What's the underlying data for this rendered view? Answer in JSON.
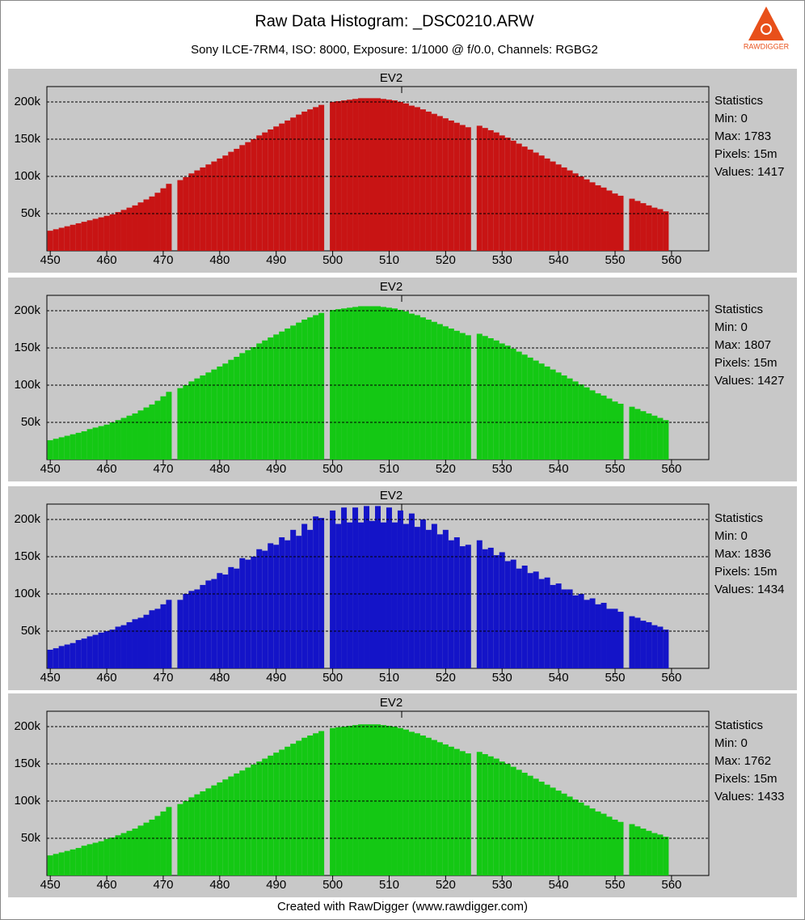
{
  "header": {
    "title": "Raw Data Histogram: _DSC0210.ARW",
    "subtitle": "Sony ILCE-7RM4, ISO: 8000, Exposure: 1/1000 @ f/0.0, Channels: RGBG2"
  },
  "footer": "Created with RawDigger (www.rawdigger.com)",
  "logo": "RAWDIGGER",
  "chart_data": [
    {
      "type": "histogram",
      "title": "EV2",
      "color": "#c81414",
      "stats": [
        "Statistics",
        "Min: 0",
        "Max: 1783",
        "Pixels: 15m",
        "Values: 1417"
      ],
      "bins": [
        449.5,
        450.5,
        451.5,
        452.5,
        453.5,
        454.5,
        455.5,
        456.5,
        457.5,
        458.5,
        459.5,
        460.5,
        461.5,
        462.5,
        463.5,
        464.5,
        465.5,
        466.5,
        467.5,
        468.5,
        469.5,
        470.5,
        471.5,
        472.5,
        473.5,
        474.5,
        475.5,
        476.5,
        477.5,
        478.5,
        479.5,
        480.5,
        481.5,
        482.5,
        483.5,
        484.5,
        485.5,
        486.5,
        487.5,
        488.5,
        489.5,
        490.5,
        491.5,
        492.5,
        493.5,
        494.5,
        495.5,
        496.5,
        497.5,
        498.5,
        499.5,
        500.5,
        501.5,
        502.5,
        503.5,
        504.5,
        505.5,
        506.5,
        507.5,
        508.5,
        509.5,
        510.5,
        511.5,
        512.5,
        513.5,
        514.5,
        515.5,
        516.5,
        517.5,
        518.5,
        519.5,
        520.5,
        521.5,
        522.5,
        523.5,
        524.5,
        525.5,
        526.5,
        527.5,
        528.5,
        529.5,
        530.5,
        531.5,
        532.5,
        533.5,
        534.5,
        535.5,
        536.5,
        537.5,
        538.5,
        539.5,
        540.5,
        541.5,
        542.5,
        543.5,
        544.5,
        545.5,
        546.5,
        547.5,
        548.5,
        549.5,
        550.5,
        551.5,
        552.5,
        553.5,
        554.5,
        555.5,
        556.5,
        557.5,
        558.5,
        559.5
      ],
      "values": [
        27,
        29,
        31,
        33,
        35,
        37,
        39,
        41,
        43,
        45,
        47,
        49,
        52,
        55,
        58,
        61,
        65,
        69,
        73,
        78,
        84,
        90,
        0,
        95,
        99,
        104,
        108,
        112,
        116,
        120,
        124,
        128,
        133,
        137,
        142,
        146,
        150,
        155,
        159,
        163,
        167,
        171,
        175,
        179,
        183,
        187,
        190,
        193,
        196,
        0,
        200,
        201,
        202,
        203,
        204,
        205,
        205,
        205,
        205,
        204,
        203,
        202,
        200,
        198,
        195,
        193,
        190,
        187,
        184,
        181,
        178,
        175,
        172,
        169,
        166,
        0,
        168,
        165,
        162,
        159,
        155,
        152,
        148,
        144,
        140,
        136,
        132,
        128,
        124,
        120,
        116,
        112,
        108,
        104,
        100,
        96,
        92,
        88,
        85,
        81,
        77,
        74,
        0,
        70,
        67,
        64,
        61,
        58,
        56,
        53
      ],
      "xlim": [
        449.4,
        566.6
      ],
      "ylim": [
        0,
        220.6
      ],
      "xticks": [
        450,
        460,
        470,
        480,
        490,
        500,
        510,
        520,
        530,
        540,
        550,
        560
      ],
      "yticks": [
        {
          "value": 50,
          "label": "50k"
        },
        {
          "value": 100,
          "label": "100k"
        },
        {
          "value": 150,
          "label": "150k"
        },
        {
          "value": 200,
          "label": "200k"
        }
      ],
      "grid": true
    },
    {
      "type": "histogram",
      "title": "EV2",
      "color": "#14c814",
      "stats": [
        "Statistics",
        "Min: 0",
        "Max: 1807",
        "Pixels: 15m",
        "Values: 1427"
      ],
      "bins": [
        449.5,
        450.5,
        451.5,
        452.5,
        453.5,
        454.5,
        455.5,
        456.5,
        457.5,
        458.5,
        459.5,
        460.5,
        461.5,
        462.5,
        463.5,
        464.5,
        465.5,
        466.5,
        467.5,
        468.5,
        469.5,
        470.5,
        471.5,
        472.5,
        473.5,
        474.5,
        475.5,
        476.5,
        477.5,
        478.5,
        479.5,
        480.5,
        481.5,
        482.5,
        483.5,
        484.5,
        485.5,
        486.5,
        487.5,
        488.5,
        489.5,
        490.5,
        491.5,
        492.5,
        493.5,
        494.5,
        495.5,
        496.5,
        497.5,
        498.5,
        499.5,
        500.5,
        501.5,
        502.5,
        503.5,
        504.5,
        505.5,
        506.5,
        507.5,
        508.5,
        509.5,
        510.5,
        511.5,
        512.5,
        513.5,
        514.5,
        515.5,
        516.5,
        517.5,
        518.5,
        519.5,
        520.5,
        521.5,
        522.5,
        523.5,
        524.5,
        525.5,
        526.5,
        527.5,
        528.5,
        529.5,
        530.5,
        531.5,
        532.5,
        533.5,
        534.5,
        535.5,
        536.5,
        537.5,
        538.5,
        539.5,
        540.5,
        541.5,
        542.5,
        543.5,
        544.5,
        545.5,
        546.5,
        547.5,
        548.5,
        549.5,
        550.5,
        551.5,
        552.5,
        553.5,
        554.5,
        555.5,
        556.5,
        557.5,
        558.5,
        559.5
      ],
      "values": [
        26,
        28,
        30,
        32,
        34,
        36,
        38,
        41,
        43,
        45,
        47,
        50,
        53,
        56,
        59,
        62,
        66,
        70,
        74,
        79,
        85,
        91,
        0,
        96,
        100,
        105,
        109,
        113,
        117,
        121,
        125,
        129,
        134,
        138,
        143,
        147,
        151,
        156,
        160,
        164,
        168,
        172,
        176,
        180,
        184,
        188,
        191,
        194,
        197,
        0,
        201,
        202,
        203,
        204,
        205,
        206,
        206,
        206,
        206,
        205,
        204,
        203,
        201,
        199,
        196,
        194,
        191,
        188,
        185,
        182,
        179,
        176,
        173,
        170,
        167,
        0,
        169,
        166,
        163,
        160,
        156,
        153,
        149,
        145,
        141,
        137,
        133,
        129,
        125,
        121,
        117,
        113,
        109,
        105,
        101,
        97,
        93,
        89,
        86,
        82,
        78,
        75,
        0,
        71,
        68,
        65,
        62,
        59,
        56,
        53
      ],
      "xlim": [
        449.4,
        566.6
      ],
      "ylim": [
        0,
        220.6
      ],
      "xticks": [
        450,
        460,
        470,
        480,
        490,
        500,
        510,
        520,
        530,
        540,
        550,
        560
      ],
      "yticks": [
        {
          "value": 50,
          "label": "50k"
        },
        {
          "value": 100,
          "label": "100k"
        },
        {
          "value": 150,
          "label": "150k"
        },
        {
          "value": 200,
          "label": "200k"
        }
      ],
      "grid": true
    },
    {
      "type": "histogram",
      "title": "EV2",
      "color": "#1414c8",
      "stats": [
        "Statistics",
        "Min: 0",
        "Max: 1836",
        "Pixels: 15m",
        "Values: 1434"
      ],
      "bins": [
        449.5,
        450.5,
        451.5,
        452.5,
        453.5,
        454.5,
        455.5,
        456.5,
        457.5,
        458.5,
        459.5,
        460.5,
        461.5,
        462.5,
        463.5,
        464.5,
        465.5,
        466.5,
        467.5,
        468.5,
        469.5,
        470.5,
        471.5,
        472.5,
        473.5,
        474.5,
        475.5,
        476.5,
        477.5,
        478.5,
        479.5,
        480.5,
        481.5,
        482.5,
        483.5,
        484.5,
        485.5,
        486.5,
        487.5,
        488.5,
        489.5,
        490.5,
        491.5,
        492.5,
        493.5,
        494.5,
        495.5,
        496.5,
        497.5,
        498.5,
        499.5,
        500.5,
        501.5,
        502.5,
        503.5,
        504.5,
        505.5,
        506.5,
        507.5,
        508.5,
        509.5,
        510.5,
        511.5,
        512.5,
        513.5,
        514.5,
        515.5,
        516.5,
        517.5,
        518.5,
        519.5,
        520.5,
        521.5,
        522.5,
        523.5,
        524.5,
        525.5,
        526.5,
        527.5,
        528.5,
        529.5,
        530.5,
        531.5,
        532.5,
        533.5,
        534.5,
        535.5,
        536.5,
        537.5,
        538.5,
        539.5,
        540.5,
        541.5,
        542.5,
        543.5,
        544.5,
        545.5,
        546.5,
        547.5,
        548.5,
        549.5,
        550.5,
        551.5,
        552.5,
        553.5,
        554.5,
        555.5,
        556.5,
        557.5,
        558.5,
        559.5
      ],
      "values": [
        25,
        27,
        30,
        32,
        34,
        38,
        40,
        43,
        45,
        48,
        50,
        52,
        56,
        58,
        62,
        66,
        68,
        72,
        78,
        80,
        86,
        92,
        0,
        92,
        100,
        104,
        106,
        112,
        118,
        120,
        128,
        126,
        136,
        134,
        148,
        146,
        150,
        160,
        158,
        168,
        166,
        176,
        172,
        186,
        178,
        194,
        186,
        204,
        202,
        0,
        212,
        194,
        216,
        196,
        216,
        196,
        218,
        198,
        218,
        196,
        216,
        196,
        212,
        194,
        208,
        190,
        200,
        186,
        194,
        180,
        186,
        172,
        176,
        164,
        166,
        0,
        172,
        160,
        162,
        152,
        156,
        144,
        146,
        134,
        138,
        128,
        130,
        120,
        122,
        112,
        114,
        106,
        106,
        98,
        100,
        92,
        94,
        86,
        88,
        80,
        80,
        76,
        0,
        70,
        68,
        64,
        62,
        58,
        56,
        52
      ],
      "xlim": [
        449.4,
        566.6
      ],
      "ylim": [
        0,
        220.6
      ],
      "xticks": [
        450,
        460,
        470,
        480,
        490,
        500,
        510,
        520,
        530,
        540,
        550,
        560
      ],
      "yticks": [
        {
          "value": 50,
          "label": "50k"
        },
        {
          "value": 100,
          "label": "100k"
        },
        {
          "value": 150,
          "label": "150k"
        },
        {
          "value": 200,
          "label": "200k"
        }
      ],
      "grid": true
    },
    {
      "type": "histogram",
      "title": "EV2",
      "color": "#14c814",
      "stats": [
        "Statistics",
        "Min: 0",
        "Max: 1762",
        "Pixels: 15m",
        "Values: 1433"
      ],
      "bins": [
        449.5,
        450.5,
        451.5,
        452.5,
        453.5,
        454.5,
        455.5,
        456.5,
        457.5,
        458.5,
        459.5,
        460.5,
        461.5,
        462.5,
        463.5,
        464.5,
        465.5,
        466.5,
        467.5,
        468.5,
        469.5,
        470.5,
        471.5,
        472.5,
        473.5,
        474.5,
        475.5,
        476.5,
        477.5,
        478.5,
        479.5,
        480.5,
        481.5,
        482.5,
        483.5,
        484.5,
        485.5,
        486.5,
        487.5,
        488.5,
        489.5,
        490.5,
        491.5,
        492.5,
        493.5,
        494.5,
        495.5,
        496.5,
        497.5,
        498.5,
        499.5,
        500.5,
        501.5,
        502.5,
        503.5,
        504.5,
        505.5,
        506.5,
        507.5,
        508.5,
        509.5,
        510.5,
        511.5,
        512.5,
        513.5,
        514.5,
        515.5,
        516.5,
        517.5,
        518.5,
        519.5,
        520.5,
        521.5,
        522.5,
        523.5,
        524.5,
        525.5,
        526.5,
        527.5,
        528.5,
        529.5,
        530.5,
        531.5,
        532.5,
        533.5,
        534.5,
        535.5,
        536.5,
        537.5,
        538.5,
        539.5,
        540.5,
        541.5,
        542.5,
        543.5,
        544.5,
        545.5,
        546.5,
        547.5,
        548.5,
        549.5,
        550.5,
        551.5,
        552.5,
        553.5,
        554.5,
        555.5,
        556.5,
        557.5,
        558.5,
        559.5
      ],
      "values": [
        27,
        29,
        31,
        33,
        35,
        37,
        40,
        42,
        44,
        46,
        49,
        51,
        54,
        57,
        60,
        63,
        67,
        71,
        75,
        80,
        86,
        92,
        0,
        96,
        100,
        105,
        109,
        113,
        117,
        121,
        125,
        129,
        133,
        137,
        141,
        145,
        149,
        153,
        157,
        161,
        165,
        169,
        173,
        177,
        181,
        185,
        188,
        191,
        194,
        0,
        198,
        199,
        200,
        201,
        202,
        203,
        203,
        203,
        203,
        202,
        201,
        200,
        198,
        196,
        193,
        191,
        188,
        185,
        182,
        179,
        176,
        173,
        170,
        167,
        164,
        0,
        166,
        163,
        160,
        157,
        153,
        150,
        146,
        142,
        138,
        134,
        130,
        126,
        122,
        118,
        114,
        110,
        106,
        102,
        98,
        94,
        90,
        86,
        83,
        79,
        75,
        72,
        0,
        69,
        66,
        63,
        60,
        57,
        55,
        52
      ],
      "xlim": [
        449.4,
        566.6
      ],
      "ylim": [
        0,
        220.6
      ],
      "xticks": [
        450,
        460,
        470,
        480,
        490,
        500,
        510,
        520,
        530,
        540,
        550,
        560
      ],
      "yticks": [
        {
          "value": 50,
          "label": "50k"
        },
        {
          "value": 100,
          "label": "100k"
        },
        {
          "value": 150,
          "label": "150k"
        },
        {
          "value": 200,
          "label": "200k"
        }
      ],
      "grid": true
    }
  ]
}
